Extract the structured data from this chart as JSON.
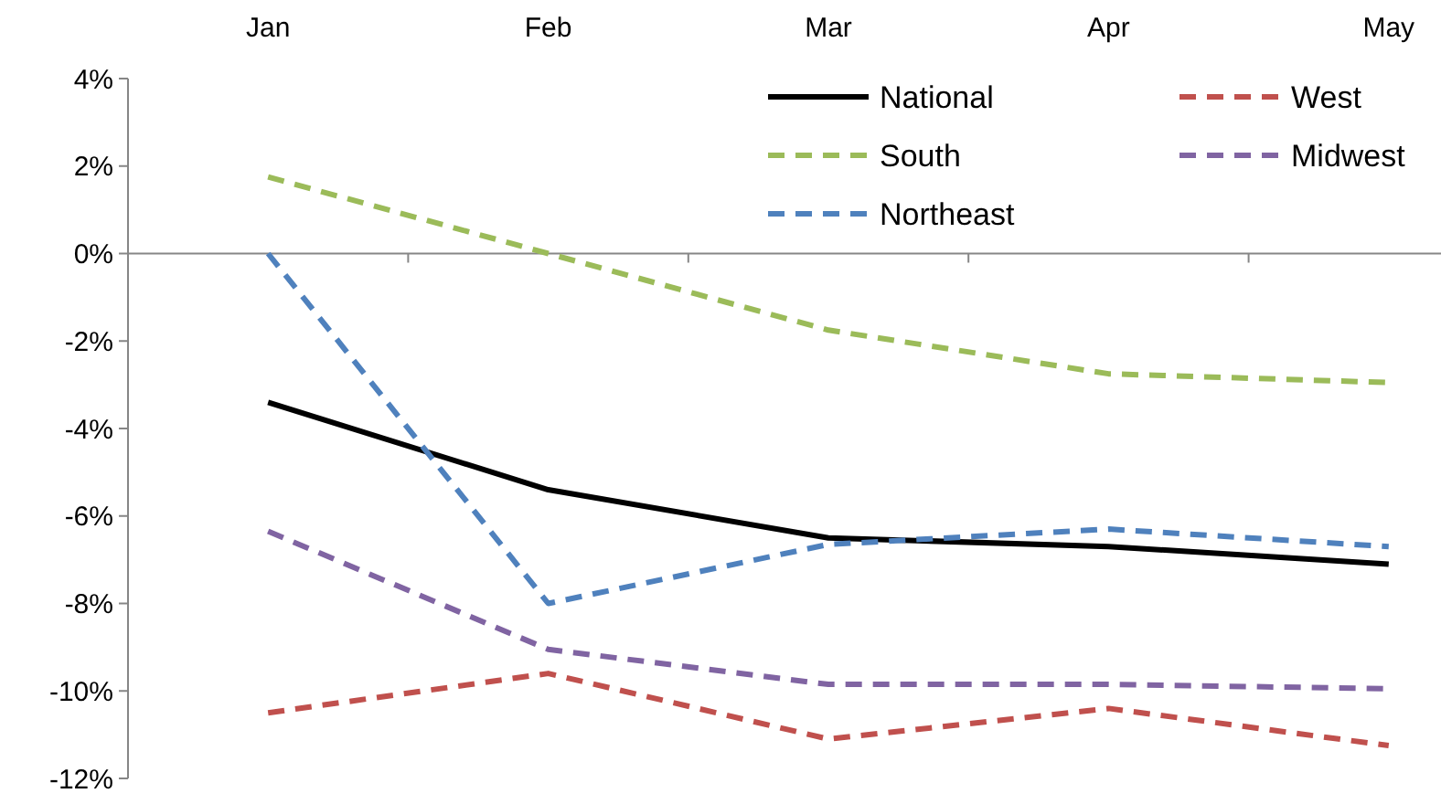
{
  "chart_data": {
    "type": "line",
    "categories": [
      "Jan",
      "Feb",
      "Mar",
      "Apr",
      "May"
    ],
    "series": [
      {
        "name": "National",
        "color": "#000000",
        "line_style": "solid",
        "values": [
          -3.4,
          -5.4,
          -6.5,
          -6.7,
          -7.1
        ]
      },
      {
        "name": "West",
        "color": "#c0504d",
        "line_style": "dashed",
        "values": [
          -10.5,
          -9.6,
          -11.1,
          -10.4,
          -11.25
        ]
      },
      {
        "name": "South",
        "color": "#9bbb59",
        "line_style": "dashed",
        "values": [
          1.75,
          0,
          -1.75,
          -2.75,
          -2.95
        ]
      },
      {
        "name": "Midwest",
        "color": "#8064a2",
        "line_style": "dashed",
        "values": [
          -6.35,
          -9.05,
          -9.85,
          -9.85,
          -9.95
        ]
      },
      {
        "name": "Northeast",
        "color": "#4f81bd",
        "line_style": "dashed",
        "values": [
          0,
          -8,
          -6.65,
          -6.3,
          -6.7
        ]
      }
    ],
    "ylim": [
      -12,
      4
    ],
    "yticks": [
      {
        "value": -12,
        "label": "-12%"
      },
      {
        "value": -10,
        "label": "-10%"
      },
      {
        "value": -8,
        "label": "-8%"
      },
      {
        "value": -6,
        "label": "-6%"
      },
      {
        "value": -4,
        "label": "-4%"
      },
      {
        "value": -2,
        "label": "-2%"
      },
      {
        "value": 0,
        "label": "0%"
      },
      {
        "value": 2,
        "label": "2%"
      },
      {
        "value": 4,
        "label": "4%"
      }
    ],
    "legend": "top right"
  }
}
